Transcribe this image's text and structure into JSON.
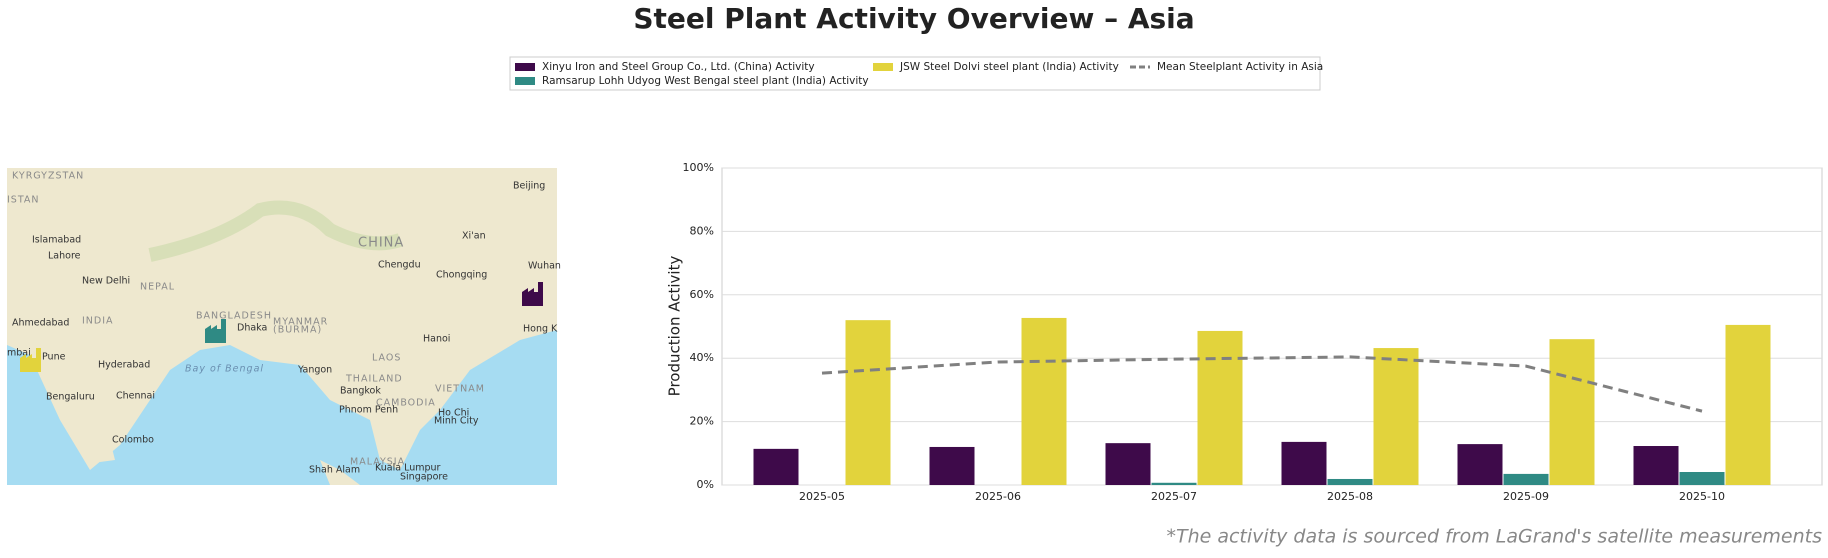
{
  "chart_data": {
    "type": "bar",
    "title": "Steel Plant Activity Overview – Asia",
    "ylabel": "Production Activity",
    "footnote": "*The activity data is sourced from LaGrand's satellite measurements",
    "categories": [
      "2025-05",
      "2025-06",
      "2025-07",
      "2025-08",
      "2025-09",
      "2025-10"
    ],
    "series": [
      {
        "name": "Xinyu Iron and Steel Group Co., Ltd. (China) Activity",
        "color": "#3e0a4a",
        "values": [
          11.4,
          12.0,
          13.2,
          13.6,
          12.9,
          12.3
        ]
      },
      {
        "name": "Ramsarup Lohh Udyog West Bengal steel plant (India) Activity",
        "color": "#2f8a84",
        "values": [
          null,
          null,
          0.7,
          1.9,
          3.5,
          4.1
        ]
      },
      {
        "name": "JSW Steel Dolvi steel plant (India) Activity",
        "color": "#e2d33c",
        "values": [
          52.0,
          52.7,
          48.6,
          43.2,
          46.0,
          50.5
        ]
      },
      {
        "name": "Mean Steelplant Activity in Asia",
        "color": "#808080",
        "type": "line",
        "dashed": true,
        "values": [
          35.3,
          38.8,
          39.7,
          40.4,
          37.5,
          23.3
        ]
      }
    ],
    "ylim": [
      0,
      100
    ],
    "yticks": [
      {
        "value": 0,
        "label": "0%"
      },
      {
        "value": 20,
        "label": "20%"
      },
      {
        "value": 40,
        "label": "40%"
      },
      {
        "value": 60,
        "label": "60%"
      },
      {
        "value": 80,
        "label": "80%"
      },
      {
        "value": 100,
        "label": "100%"
      }
    ],
    "grid": true,
    "legend": "top",
    "map_labels": [
      "KYRGYZSTAN",
      "ISTAN",
      "Islamabad",
      "Lahore",
      "New Delhi",
      "NEPAL",
      "INDIA",
      "Ahmedabad",
      "mbai",
      "Pune",
      "Hyderabad",
      "Bengaluru",
      "Chennai",
      "Colombo",
      "Bay of Bengal",
      "BANGLADESH",
      "Dhaka",
      "MYANMAR",
      "(BURMA)",
      "Yangon",
      "THAILAND",
      "Bangkok",
      "LAOS",
      "Hanoi",
      "VIETNAM",
      "CAMBODIA",
      "Phnom Penh",
      "Ho Chi",
      "Minh City",
      "MALAYSIA",
      "Kuala Lumpur",
      "Shah Alam",
      "Singapore",
      "CHINA",
      "Chengdu",
      "Chongqing",
      "Xi'an",
      "Wuhan",
      "Beijing",
      "Hong K"
    ]
  }
}
